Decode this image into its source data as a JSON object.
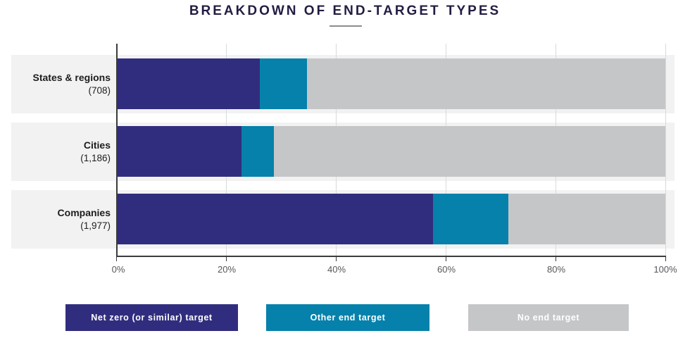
{
  "title": "BREAKDOWN OF END-TARGET TYPES",
  "colors": {
    "net_zero": "#312d7e",
    "other": "#0681ab",
    "none": "#c5c6c8",
    "row_band": "#f2f2f3",
    "title_text": "#221d42",
    "axis": "#3b3b3b",
    "gridline": "#d9dadb"
  },
  "axis": {
    "ticks": [
      "0%",
      "20%",
      "40%",
      "60%",
      "80%",
      "100%"
    ]
  },
  "rows": [
    {
      "label": "States & regions",
      "count": "(708)",
      "net_zero_pct": 26.1,
      "other_pct": 8.6,
      "none_pct": 65.3
    },
    {
      "label": "Cities",
      "count": "(1,186)",
      "net_zero_pct": 22.7,
      "other_pct": 5.9,
      "none_pct": 71.4
    },
    {
      "label": "Companies",
      "count": "(1,977)",
      "net_zero_pct": 57.7,
      "other_pct": 13.7,
      "none_pct": 28.6
    }
  ],
  "legend": [
    {
      "label": "Net zero (or similar) target"
    },
    {
      "label": "Other end target"
    },
    {
      "label": "No end target"
    }
  ],
  "chart_data": {
    "type": "bar",
    "orientation": "horizontal",
    "stacked": true,
    "title": "BREAKDOWN OF END-TARGET TYPES",
    "categories": [
      "States & regions",
      "Cities",
      "Companies"
    ],
    "category_counts": [
      708,
      1186,
      1977
    ],
    "series": [
      {
        "name": "Net zero (or similar) target",
        "color": "#312d7e",
        "values": [
          26.1,
          22.7,
          57.7
        ]
      },
      {
        "name": "Other end target",
        "color": "#0681ab",
        "values": [
          8.6,
          5.9,
          13.7
        ]
      },
      {
        "name": "No end target",
        "color": "#c5c6c8",
        "values": [
          65.3,
          71.4,
          28.6
        ]
      }
    ],
    "x_unit": "%",
    "xlim": [
      0,
      100
    ],
    "x_ticks": [
      "0%",
      "20%",
      "40%",
      "60%",
      "80%",
      "100%"
    ],
    "grid": "vertical",
    "legend_position": "bottom"
  }
}
